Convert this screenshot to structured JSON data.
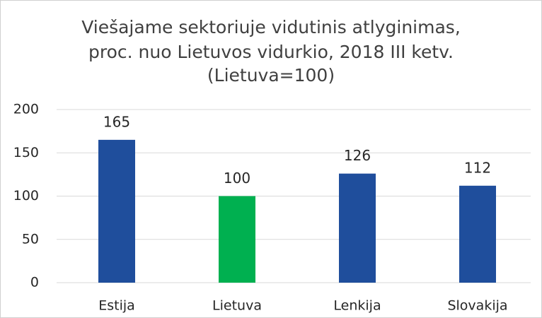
{
  "chart_data": {
    "type": "bar",
    "title": [
      "Viešajame sektoriuje vidutinis atlyginimas,",
      "proc. nuo Lietuvos vidurkio, 2018 III ketv.",
      "(Lietuva=100)"
    ],
    "categories": [
      "Estija",
      "Lietuva",
      "Lenkija",
      "Slovakija"
    ],
    "values": [
      165,
      100,
      126,
      112
    ],
    "colors": [
      "#1f4e9c",
      "#00b050",
      "#1f4e9c",
      "#1f4e9c"
    ],
    "ylim": [
      0,
      200
    ],
    "yticks": [
      0,
      50,
      100,
      150,
      200
    ],
    "grid": true
  }
}
